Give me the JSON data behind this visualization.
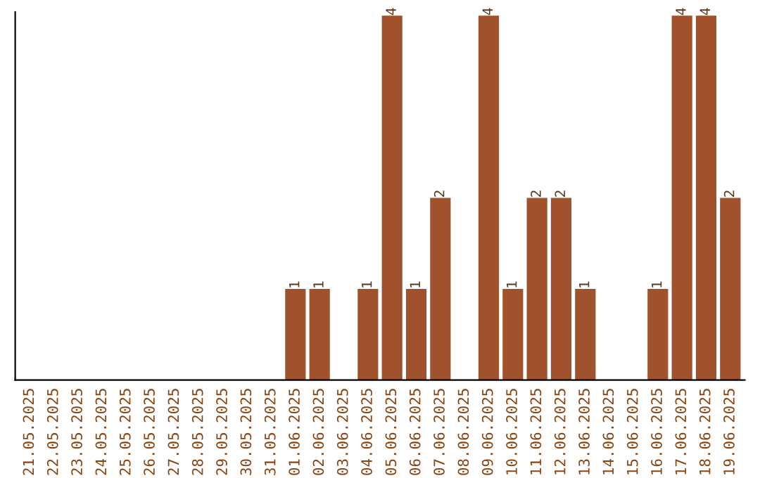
{
  "chart_data": {
    "type": "bar",
    "categories": [
      "21.05.2025",
      "22.05.2025",
      "23.05.2025",
      "24.05.2025",
      "25.05.2025",
      "26.05.2025",
      "27.05.2025",
      "28.05.2025",
      "29.05.2025",
      "30.05.2025",
      "31.05.2025",
      "01.06.2025",
      "02.06.2025",
      "03.06.2025",
      "04.06.2025",
      "05.06.2025",
      "06.06.2025",
      "07.06.2025",
      "08.06.2025",
      "09.06.2025",
      "10.06.2025",
      "11.06.2025",
      "12.06.2025",
      "13.06.2025",
      "14.06.2025",
      "15.06.2025",
      "16.06.2025",
      "17.06.2025",
      "18.06.2025",
      "19.06.2025"
    ],
    "values": [
      0,
      0,
      0,
      0,
      0,
      0,
      0,
      0,
      0,
      0,
      0,
      1,
      1,
      0,
      1,
      4,
      1,
      2,
      0,
      4,
      1,
      2,
      2,
      1,
      0,
      0,
      1,
      4,
      4,
      2
    ],
    "value_labels": [
      null,
      null,
      null,
      null,
      null,
      null,
      null,
      null,
      null,
      null,
      null,
      "1",
      "1",
      null,
      "1",
      "4",
      "1",
      "2",
      null,
      "4",
      "1",
      "2",
      "2",
      "1",
      null,
      null,
      "1",
      "4",
      "4",
      "2"
    ],
    "color": "#a0522d",
    "tick_labels": "x",
    "grid": false,
    "legend": false
  }
}
